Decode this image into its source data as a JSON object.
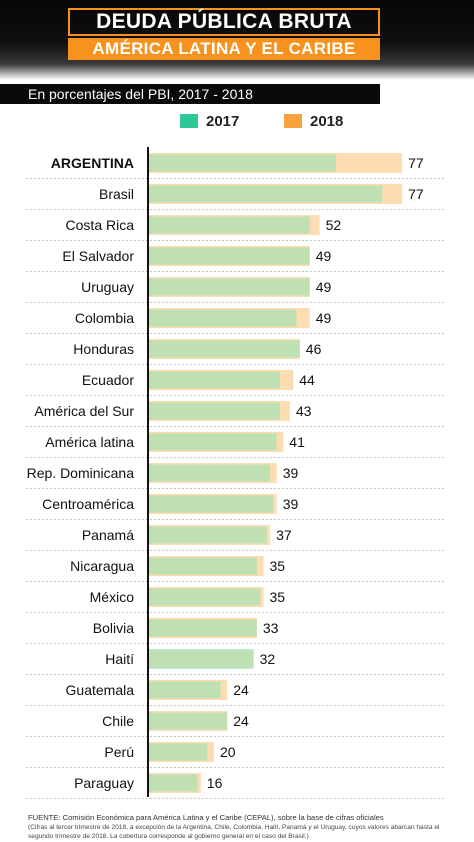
{
  "header": {
    "title": "DEUDA PÚBLICA BRUTA",
    "subtitle": "AMÉRICA LATINA Y EL CARIBE",
    "units": "En porcentajes del PBI,  2017 - 2018"
  },
  "colors": {
    "s2017": "#bfe0b2",
    "s2018": "#fcdcb0",
    "legend_2017": "#2ec79a",
    "legend_2018": "#f7a23a",
    "haiti_2018": "#bcead8",
    "accent": "#f7921e"
  },
  "chart_data": {
    "type": "bar",
    "orientation": "horizontal",
    "categories": [
      "ARGENTINA",
      "Brasil",
      "Costa Rica",
      "El Salvador",
      "Uruguay",
      "Colombia",
      "Honduras",
      "Ecuador",
      "América del Sur",
      "América latina",
      "Rep. Dominicana",
      "Centroamérica",
      "Panamá",
      "Nicaragua",
      "México",
      "Bolivia",
      "Haití",
      "Guatemala",
      "Chile",
      "Perú",
      "Paraguay"
    ],
    "series": [
      {
        "name": "2017",
        "values": [
          57,
          71,
          49,
          49,
          49,
          45,
          46,
          40,
          40,
          39,
          37,
          38,
          36,
          33,
          34,
          33,
          32,
          22,
          24,
          18,
          15
        ]
      },
      {
        "name": "2018",
        "values": [
          77,
          77,
          52,
          49,
          49,
          49,
          46,
          44,
          43,
          41,
          39,
          39,
          37,
          35,
          35,
          33,
          32,
          24,
          24,
          20,
          16
        ]
      }
    ],
    "data_labels": [
      "77",
      "77",
      "52",
      "49",
      "49",
      "49",
      "46",
      "44",
      "43",
      "41",
      "39",
      "39",
      "37",
      "35",
      "35",
      "33",
      "32",
      "24",
      "24",
      "20",
      "16"
    ],
    "xlim": [
      0,
      80
    ],
    "legend": "top",
    "grid": false
  },
  "footnote": {
    "source": "FUENTE: Comisión Económica para América Latina y el Caribe (CEPAL), sobre la base de cifras oficiales",
    "note": "(Cifras al tercer trimestre de 2018, a excepción de la Argentina, Chile, Colombia, Haití, Panamá y el Uruguay, cuyos valores abarcan hasta el segundo trimestre de 2018. La cobertura corresponde al gobierno general en el caso del Brasil.)"
  }
}
